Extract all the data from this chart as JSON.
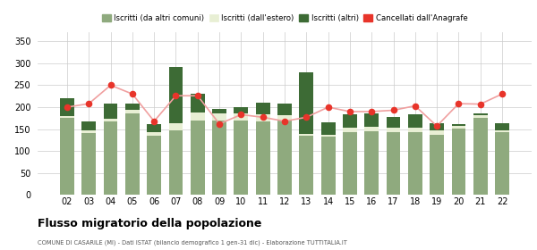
{
  "years": [
    "02",
    "03",
    "04",
    "05",
    "06",
    "07",
    "08",
    "09",
    "10",
    "11",
    "12",
    "13",
    "14",
    "15",
    "16",
    "17",
    "18",
    "19",
    "20",
    "21",
    "22"
  ],
  "iscritti_altri_comuni": [
    175,
    142,
    168,
    185,
    135,
    148,
    170,
    170,
    170,
    168,
    170,
    135,
    133,
    143,
    145,
    143,
    143,
    138,
    152,
    176,
    143
  ],
  "iscritti_estero": [
    5,
    5,
    5,
    8,
    8,
    15,
    18,
    15,
    15,
    15,
    12,
    5,
    5,
    10,
    10,
    10,
    10,
    10,
    5,
    5,
    5
  ],
  "iscritti_altri": [
    40,
    20,
    35,
    15,
    18,
    128,
    42,
    10,
    15,
    28,
    27,
    140,
    27,
    30,
    30,
    25,
    30,
    15,
    5,
    5,
    15
  ],
  "cancellati": [
    200,
    208,
    250,
    230,
    168,
    226,
    226,
    162,
    183,
    177,
    168,
    177,
    200,
    190,
    190,
    193,
    203,
    157,
    208,
    207,
    230
  ],
  "color_altri_comuni": "#8faa7e",
  "color_estero": "#e8efd4",
  "color_altri": "#3d6b35",
  "color_cancellati": "#e8342a",
  "color_line": "#f0a0a0",
  "title": "Flusso migratorio della popolazione",
  "subtitle": "COMUNE DI CASARILE (MI) - Dati ISTAT (bilancio demografico 1 gen-31 dic) - Elaborazione TUTTITALIA.IT",
  "legend_labels": [
    "Iscritti (da altri comuni)",
    "Iscritti (dall'estero)",
    "Iscritti (altri)",
    "Cancellati dall'Anagrafe"
  ],
  "ylim": [
    0,
    370
  ],
  "yticks": [
    0,
    50,
    100,
    150,
    200,
    250,
    300,
    350
  ],
  "bg_color": "#ffffff",
  "grid_color": "#cccccc"
}
